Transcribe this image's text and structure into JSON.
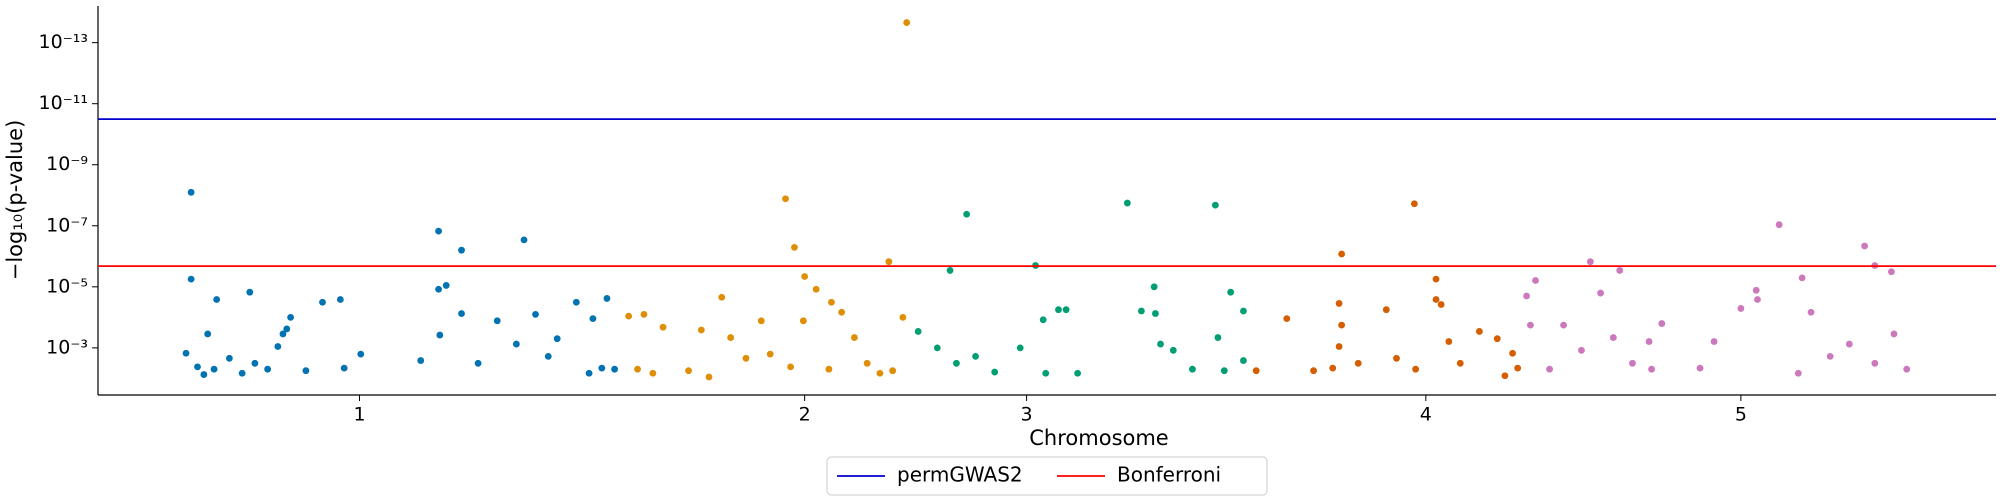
{
  "chart_data": {
    "type": "scatter",
    "xlabel": "Chromosome",
    "ylabel": "−log₁₀(p-value)",
    "log_scale_y": true,
    "xlim": [
      0,
      1488
    ],
    "ylim": [
      0.035,
      6.3e-15
    ],
    "xticks": [
      {
        "value": 205,
        "label": "1"
      },
      {
        "value": 554,
        "label": "2"
      },
      {
        "value": 728,
        "label": "3"
      },
      {
        "value": 1041,
        "label": "4"
      },
      {
        "value": 1288,
        "label": "5"
      }
    ],
    "yticks": [
      {
        "value": 1e-13,
        "label": "10⁻¹³"
      },
      {
        "value": 1e-11,
        "label": "10⁻¹¹"
      },
      {
        "value": 1e-09,
        "label": "10⁻⁹"
      },
      {
        "value": 1e-07,
        "label": "10⁻⁷"
      },
      {
        "value": 1e-05,
        "label": "10⁻⁵"
      },
      {
        "value": 0.001,
        "label": "10⁻³"
      }
    ],
    "legend_position": "bottom",
    "hlines": [
      {
        "name": "permGWAS2",
        "color": "#0000cc",
        "value": 3.2e-11
      },
      {
        "name": "Bonferroni",
        "color": "#ff0000",
        "value": 2.1e-06
      }
    ],
    "series": [
      {
        "color": "#0173b2",
        "x": [
          73,
          73,
          119,
          93,
          86,
          69,
          78,
          83,
          91,
          103,
          113,
          123,
          133,
          141,
          145,
          151,
          148,
          163,
          176,
          190,
          193,
          206,
          253,
          267,
          267,
          273,
          268,
          285,
          285,
          298,
          313,
          334,
          343,
          328,
          353,
          360,
          375,
          388,
          399,
          385,
          395,
          405
        ],
        "values": [
          8e-09,
          5.6e-06,
          1.5e-05,
          2.6e-05,
          0.00035,
          0.0015,
          0.0042,
          0.0075,
          0.005,
          0.0022,
          0.0068,
          0.0032,
          0.005,
          0.0009,
          0.00035,
          0.0001,
          0.00024,
          0.0056,
          3.2e-05,
          2.6e-05,
          0.0046,
          0.0016,
          0.0026,
          1.5e-07,
          1.2e-05,
          9e-06,
          0.00038,
          6.3e-07,
          7.5e-05,
          0.0032,
          0.00013,
          2.9e-07,
          8e-05,
          0.00075,
          0.0019,
          0.0005,
          3.2e-05,
          0.00011,
          2.4e-05,
          0.0068,
          0.0046,
          0.005
        ]
      },
      {
        "color": "#de8f05",
        "x": [
          416,
          428,
          443,
          423,
          435,
          463,
          473,
          479,
          489,
          496,
          508,
          520,
          539,
          546,
          554,
          563,
          553,
          543,
          575,
          583,
          593,
          573,
          603,
          620,
          631,
          623,
          634,
          613,
          527
        ],
        "values": [
          9.1e-05,
          8e-05,
          0.00021,
          0.005,
          0.0068,
          0.0056,
          0.00026,
          0.009,
          2.2e-05,
          0.00046,
          0.0022,
          0.00013,
          1.3e-08,
          5.1e-07,
          4.6e-06,
          1.2e-05,
          0.00013,
          0.0042,
          3.2e-05,
          6.8e-05,
          0.00046,
          0.005,
          0.0032,
          1.5e-06,
          0.0001,
          0.0056,
          2.2e-14,
          0.0068,
          0.0016
        ]
      },
      {
        "color": "#029e73",
        "x": [
          643,
          658,
          668,
          681,
          673,
          688,
          703,
          723,
          735,
          741,
          753,
          759,
          743,
          768,
          807,
          818,
          828,
          829,
          833,
          843,
          858,
          876,
          878,
          888,
          898,
          898,
          883
        ],
        "values": [
          0.00029,
          0.001,
          2.9e-06,
          4.2e-08,
          0.0032,
          0.0019,
          0.0062,
          0.001,
          2e-06,
          0.00012,
          5.6e-05,
          5.6e-05,
          0.0068,
          0.0068,
          1.8e-08,
          6.2e-05,
          1e-05,
          7.5e-05,
          0.00075,
          0.0012,
          0.005,
          2.1e-08,
          0.00046,
          1.5e-05,
          6.2e-05,
          0.0026,
          0.0056
        ]
      },
      {
        "color": "#d55e00",
        "x": [
          908,
          932,
          953,
          975,
          973,
          975,
          973,
          968,
          988,
          1010,
          1018,
          1032,
          1049,
          1049,
          1053,
          1059,
          1068,
          1083,
          1097,
          1109,
          1103,
          1033,
          1113
        ],
        "values": [
          0.0056,
          0.00011,
          0.0056,
          8.4e-07,
          3.5e-05,
          0.00018,
          0.0009,
          0.0046,
          0.0032,
          5.6e-05,
          0.0022,
          1.9e-08,
          5.6e-06,
          2.6e-05,
          3.8e-05,
          0.00062,
          0.0032,
          0.00029,
          0.0005,
          0.0015,
          0.0082,
          0.005,
          0.0046
        ]
      },
      {
        "color": "#cc78bc",
        "x": [
          1120,
          1127,
          1123,
          1138,
          1149,
          1163,
          1170,
          1178,
          1193,
          1188,
          1203,
          1216,
          1226,
          1218,
          1256,
          1267,
          1288,
          1300,
          1301,
          1318,
          1336,
          1343,
          1333,
          1358,
          1373,
          1385,
          1393,
          1406,
          1393,
          1408,
          1418
        ],
        "values": [
          2e-05,
          6.2e-06,
          0.00018,
          0.005,
          0.00018,
          0.0012,
          1.5e-06,
          1.6e-05,
          2.9e-06,
          0.00046,
          0.0032,
          0.00062,
          0.00016,
          0.005,
          0.0046,
          0.00062,
          5.1e-05,
          1.3e-05,
          2.6e-05,
          9.2e-08,
          5.1e-06,
          6.8e-05,
          0.0068,
          0.0019,
          0.00075,
          4.6e-07,
          2e-06,
          3.2e-06,
          0.0032,
          0.00035,
          0.005
        ]
      }
    ]
  }
}
